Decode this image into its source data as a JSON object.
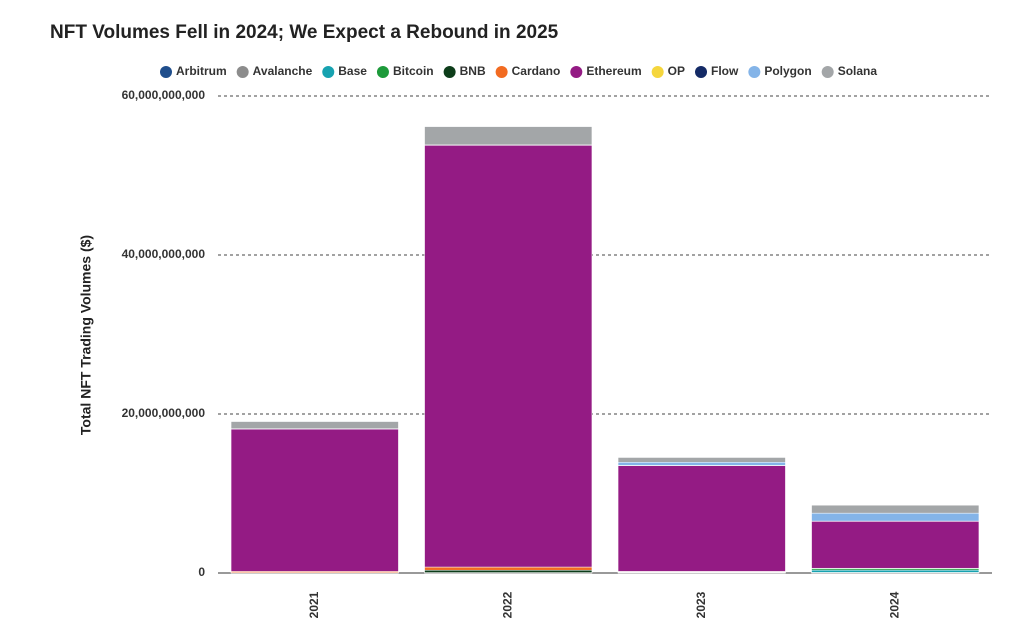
{
  "chart_data": {
    "type": "stacked-bar",
    "title": "NFT Volumes Fell in 2024; We Expect a Rebound in 2025",
    "y_label": "Total NFT Trading Volumes ($)",
    "categories": [
      "2021",
      "2022",
      "2023",
      "2024"
    ],
    "series": [
      {
        "name": "Arbitrum",
        "color": "#1f4e8c",
        "values": [
          0,
          0,
          50000000,
          50000000
        ]
      },
      {
        "name": "Avalanche",
        "color": "#8c8c8c",
        "values": [
          0,
          50000000,
          20000000,
          20000000
        ]
      },
      {
        "name": "Base",
        "color": "#17a2b0",
        "values": [
          0,
          0,
          0,
          300000000
        ]
      },
      {
        "name": "Bitcoin",
        "color": "#1d9a3a",
        "values": [
          0,
          0,
          50000000,
          200000000
        ]
      },
      {
        "name": "BNB",
        "color": "#0d3d1a",
        "values": [
          50000000,
          300000000,
          50000000,
          20000000
        ]
      },
      {
        "name": "Cardano",
        "color": "#f26b21",
        "values": [
          150000000,
          400000000,
          30000000,
          10000000
        ]
      },
      {
        "name": "Ethereum",
        "color": "#941b84",
        "values": [
          17900000000,
          53050000000,
          13300000000,
          5900000000
        ]
      },
      {
        "name": "OP",
        "color": "#f5d63d",
        "values": [
          0,
          0,
          20000000,
          20000000
        ]
      },
      {
        "name": "Flow",
        "color": "#142a66",
        "values": [
          50000000,
          50000000,
          10000000,
          10000000
        ]
      },
      {
        "name": "Polygon",
        "color": "#84b4e8",
        "values": [
          0,
          0,
          400000000,
          1000000000
        ]
      },
      {
        "name": "Solana",
        "color": "#a3a6a8",
        "values": [
          900000000,
          2300000000,
          600000000,
          1000000000
        ]
      }
    ],
    "ylim": [
      0,
      60000000000
    ],
    "yticks": [
      0,
      {
        "value": 20000000000,
        "label": "20,000,000,000"
      },
      {
        "value": 40000000000,
        "label": "40,000,000,000"
      },
      {
        "value": 60000000000,
        "label": "60,000,000,000"
      }
    ],
    "grid": true
  }
}
